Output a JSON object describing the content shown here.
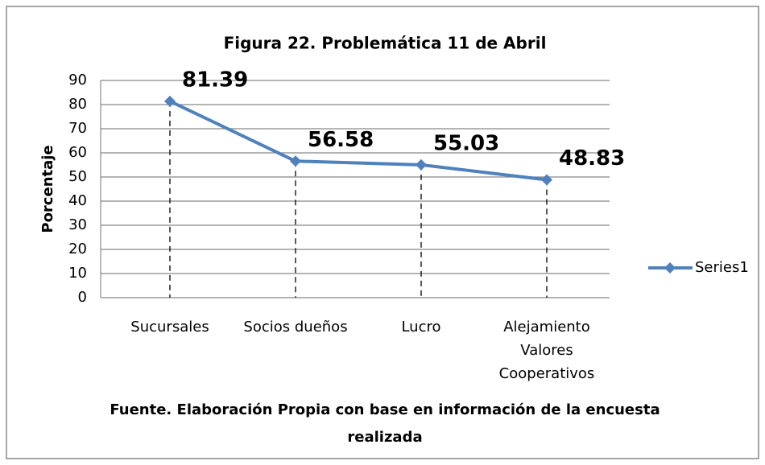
{
  "chart_data": {
    "type": "line",
    "title": "Figura 22. Problemática 11 de Abril",
    "ylabel": "Porcentaje",
    "caption": "Fuente. Elaboración Propia con base en información de la encuesta realizada",
    "categories": [
      "Sucursales",
      "Socios dueños",
      "Lucro",
      "Alejamiento Valores Cooperativos"
    ],
    "series": [
      {
        "name": "Series1",
        "color": "#4f81bd",
        "values": [
          81.39,
          56.58,
          55.03,
          48.83
        ]
      }
    ],
    "ylim": [
      0,
      90
    ],
    "yticks": [
      0,
      10,
      20,
      30,
      40,
      50,
      60,
      70,
      80,
      90
    ],
    "grid": true,
    "drop_lines": true,
    "legend": "right"
  }
}
